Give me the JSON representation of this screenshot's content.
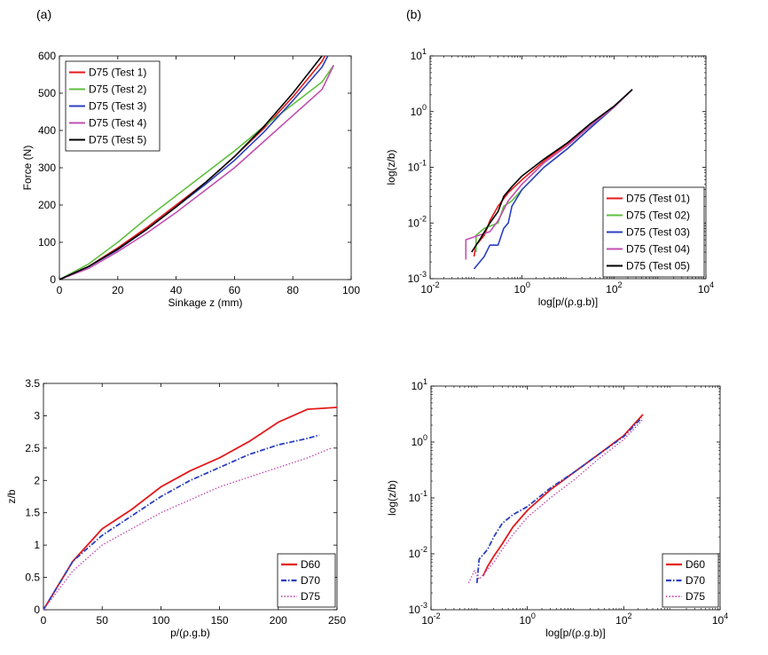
{
  "panel_labels": [
    "(a)",
    "(b)"
  ],
  "colors": {
    "test1": "#e41a1c",
    "test2": "#5fbf3f",
    "test3": "#2b3fbf",
    "test4": "#c04fb0",
    "test5": "#000000",
    "D60": "#e41a1c",
    "D70": "#2b3fbf",
    "D75": "#c04fb0"
  },
  "chart_data": [
    {
      "type": "line",
      "xlabel": "Sinkage z (mm)",
      "ylabel": "Force (N)",
      "xlim": [
        0,
        100
      ],
      "ylim": [
        0,
        600
      ],
      "xticks": [
        "0",
        "20",
        "40",
        "60",
        "80",
        "100"
      ],
      "yticks": [
        "0",
        "100",
        "200",
        "300",
        "400",
        "500",
        "600"
      ],
      "grid": false,
      "legend": "top-left",
      "series": [
        {
          "name": "D75 (Test 1)",
          "x": [
            0,
            10,
            20,
            30,
            40,
            50,
            60,
            70,
            80,
            90,
            91
          ],
          "y": [
            0,
            35,
            85,
            140,
            200,
            260,
            330,
            405,
            490,
            585,
            600
          ]
        },
        {
          "name": "D75 (Test 2)",
          "x": [
            0,
            10,
            20,
            30,
            40,
            50,
            60,
            70,
            80,
            90,
            94
          ],
          "y": [
            0,
            42,
            100,
            165,
            225,
            285,
            345,
            410,
            470,
            530,
            575
          ]
        },
        {
          "name": "D75 (Test 3)",
          "x": [
            0,
            10,
            20,
            30,
            40,
            50,
            60,
            70,
            80,
            90,
            92
          ],
          "y": [
            0,
            35,
            80,
            135,
            195,
            255,
            320,
            395,
            480,
            570,
            600
          ]
        },
        {
          "name": "D75 (Test 4)",
          "x": [
            0,
            10,
            20,
            30,
            40,
            50,
            60,
            70,
            80,
            90,
            94
          ],
          "y": [
            0,
            30,
            75,
            125,
            180,
            240,
            300,
            370,
            440,
            510,
            575
          ]
        },
        {
          "name": "D75 (Test 5)",
          "x": [
            0,
            10,
            20,
            30,
            40,
            50,
            60,
            70,
            80,
            90
          ],
          "y": [
            0,
            35,
            82,
            135,
            195,
            260,
            330,
            410,
            500,
            600
          ]
        }
      ]
    },
    {
      "type": "line",
      "xlabel": "log[p/(ρ.g.b)]",
      "ylabel": "log(z/b)",
      "xscale": "log",
      "yscale": "log",
      "xlim": [
        0.01,
        10000
      ],
      "ylim": [
        0.001,
        10
      ],
      "xticks": [
        {
          "base": "10",
          "exp": "-2"
        },
        {
          "base": "10",
          "exp": "0"
        },
        {
          "base": "10",
          "exp": "2"
        },
        {
          "base": "10",
          "exp": "4"
        }
      ],
      "yticks": [
        {
          "base": "10",
          "exp": "-3"
        },
        {
          "base": "10",
          "exp": "-2"
        },
        {
          "base": "10",
          "exp": "-1"
        },
        {
          "base": "10",
          "exp": "0"
        },
        {
          "base": "10",
          "exp": "1"
        }
      ],
      "grid": false,
      "legend": "bottom-right",
      "series": [
        {
          "name": "D75 (Test 01)",
          "x": [
            0.09,
            0.1,
            0.15,
            0.2,
            0.3,
            0.5,
            1,
            3,
            10,
            30,
            100,
            250
          ],
          "y": [
            0.0025,
            0.004,
            0.006,
            0.011,
            0.02,
            0.035,
            0.06,
            0.13,
            0.27,
            0.55,
            1.2,
            2.5
          ]
        },
        {
          "name": "D75 (Test 02)",
          "x": [
            0.1,
            0.1,
            0.15,
            0.3,
            0.4,
            0.6,
            1,
            3,
            10,
            30,
            100,
            250
          ],
          "y": [
            0.003,
            0.006,
            0.008,
            0.01,
            0.02,
            0.025,
            0.04,
            0.1,
            0.22,
            0.5,
            1.2,
            2.5
          ]
        },
        {
          "name": "D75 (Test 03)",
          "x": [
            0.09,
            0.15,
            0.2,
            0.3,
            0.4,
            0.5,
            0.6,
            1,
            3,
            10,
            30,
            100,
            250
          ],
          "y": [
            0.0015,
            0.0025,
            0.004,
            0.004,
            0.008,
            0.01,
            0.02,
            0.04,
            0.1,
            0.22,
            0.5,
            1.2,
            2.5
          ]
        },
        {
          "name": "D75 (Test 04)",
          "x": [
            0.06,
            0.06,
            0.2,
            0.3,
            0.5,
            1,
            3,
            10,
            30,
            100,
            250
          ],
          "y": [
            0.0022,
            0.005,
            0.007,
            0.011,
            0.025,
            0.05,
            0.12,
            0.25,
            0.55,
            1.2,
            2.5
          ]
        },
        {
          "name": "D75 (Test 05)",
          "x": [
            0.08,
            0.12,
            0.2,
            0.3,
            0.4,
            0.6,
            1,
            3,
            10,
            30,
            100,
            250
          ],
          "y": [
            0.003,
            0.005,
            0.01,
            0.016,
            0.03,
            0.045,
            0.07,
            0.14,
            0.28,
            0.6,
            1.25,
            2.5
          ]
        }
      ]
    },
    {
      "type": "line",
      "xlabel": "p/(ρ.g.b)",
      "ylabel": "z/b",
      "xlim": [
        0,
        250
      ],
      "ylim": [
        0,
        3.5
      ],
      "xticks": [
        "0",
        "50",
        "100",
        "150",
        "200",
        "250"
      ],
      "yticks": [
        "0",
        "0.5",
        "1",
        "1.5",
        "2",
        "2.5",
        "3",
        "3.5"
      ],
      "grid": false,
      "legend": "bottom-right",
      "series": [
        {
          "name": "D60",
          "x": [
            0,
            25,
            50,
            75,
            100,
            125,
            150,
            175,
            200,
            225,
            250
          ],
          "y": [
            0,
            0.75,
            1.25,
            1.55,
            1.9,
            2.15,
            2.35,
            2.6,
            2.9,
            3.1,
            3.13
          ]
        },
        {
          "name": "D70",
          "x": [
            0,
            25,
            50,
            75,
            100,
            125,
            150,
            175,
            200,
            225,
            235
          ],
          "y": [
            0,
            0.75,
            1.15,
            1.45,
            1.75,
            2.0,
            2.2,
            2.4,
            2.55,
            2.65,
            2.7
          ]
        },
        {
          "name": "D75",
          "x": [
            0,
            25,
            50,
            75,
            100,
            125,
            150,
            175,
            200,
            225,
            245
          ],
          "y": [
            0,
            0.6,
            1.0,
            1.25,
            1.5,
            1.7,
            1.9,
            2.05,
            2.2,
            2.35,
            2.5
          ]
        }
      ]
    },
    {
      "type": "line",
      "xlabel": "log[p/(ρ.g.b)]",
      "ylabel": "log(z/b)",
      "xscale": "log",
      "yscale": "log",
      "xlim": [
        0.01,
        10000
      ],
      "ylim": [
        0.001,
        10
      ],
      "xticks": [
        {
          "base": "10",
          "exp": "-2"
        },
        {
          "base": "10",
          "exp": "0"
        },
        {
          "base": "10",
          "exp": "2"
        },
        {
          "base": "10",
          "exp": "4"
        }
      ],
      "yticks": [
        {
          "base": "10",
          "exp": "-3"
        },
        {
          "base": "10",
          "exp": "-2"
        },
        {
          "base": "10",
          "exp": "-1"
        },
        {
          "base": "10",
          "exp": "0"
        },
        {
          "base": "10",
          "exp": "1"
        }
      ],
      "grid": false,
      "legend": "bottom-right",
      "series": [
        {
          "name": "D60",
          "x": [
            0.12,
            0.15,
            0.2,
            0.3,
            0.5,
            1,
            3,
            10,
            30,
            100,
            250
          ],
          "y": [
            0.004,
            0.006,
            0.009,
            0.015,
            0.03,
            0.06,
            0.14,
            0.3,
            0.6,
            1.3,
            3.1
          ]
        },
        {
          "name": "D70",
          "x": [
            0.09,
            0.1,
            0.15,
            0.2,
            0.3,
            0.5,
            1,
            3,
            10,
            30,
            100,
            235
          ],
          "y": [
            0.003,
            0.008,
            0.012,
            0.02,
            0.035,
            0.05,
            0.07,
            0.15,
            0.3,
            0.6,
            1.25,
            2.7
          ]
        },
        {
          "name": "D75",
          "x": [
            0.06,
            0.08,
            0.1,
            0.2,
            0.3,
            0.5,
            1,
            3,
            10,
            30,
            100,
            245
          ],
          "y": [
            0.003,
            0.005,
            0.0035,
            0.007,
            0.012,
            0.022,
            0.045,
            0.1,
            0.22,
            0.5,
            1.1,
            2.5
          ]
        }
      ]
    }
  ]
}
